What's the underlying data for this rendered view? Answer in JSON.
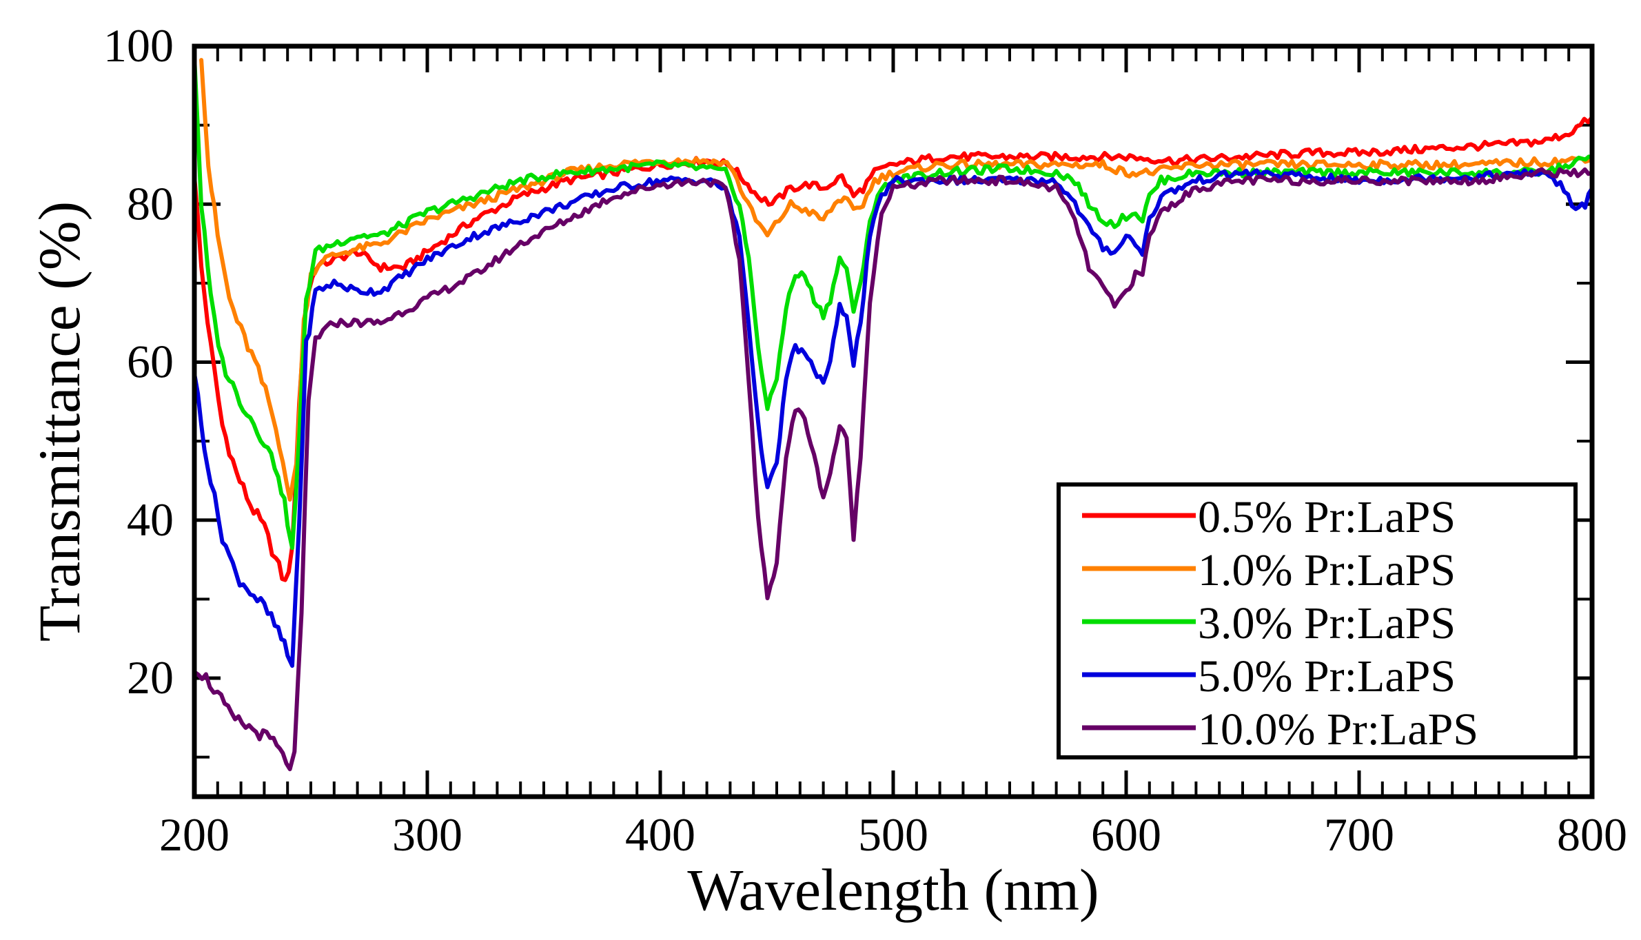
{
  "chart_data": {
    "type": "line",
    "title": "",
    "xlabel": "Wavelength (nm)",
    "ylabel": "Transmittance (%)",
    "xlim": [
      200,
      800
    ],
    "ylim": [
      5,
      100
    ],
    "x_ticks": [
      200,
      300,
      400,
      500,
      600,
      700,
      800
    ],
    "y_ticks": [
      20,
      40,
      60,
      80,
      100
    ],
    "x_tick_labels": [
      "200",
      "300",
      "400",
      "500",
      "600",
      "700",
      "800"
    ],
    "y_tick_labels": [
      "20",
      "40",
      "60",
      "80",
      "100"
    ],
    "grid": false,
    "legend_position": "bottom-right",
    "series": [
      {
        "name": "0.5% Pr:LaPS",
        "color": "#ff0000",
        "points": [
          [
            200,
            84
          ],
          [
            203,
            72
          ],
          [
            207,
            62
          ],
          [
            212,
            52
          ],
          [
            218,
            46
          ],
          [
            224,
            42
          ],
          [
            230,
            39
          ],
          [
            235,
            35
          ],
          [
            239,
            32
          ],
          [
            242,
            36
          ],
          [
            245,
            55
          ],
          [
            248,
            68
          ],
          [
            252,
            72
          ],
          [
            260,
            73
          ],
          [
            270,
            74
          ],
          [
            280,
            72
          ],
          [
            290,
            72
          ],
          [
            300,
            74
          ],
          [
            320,
            78
          ],
          [
            340,
            81
          ],
          [
            360,
            83
          ],
          [
            380,
            84
          ],
          [
            400,
            85
          ],
          [
            420,
            85.5
          ],
          [
            430,
            85
          ],
          [
            436,
            83
          ],
          [
            442,
            81
          ],
          [
            448,
            80
          ],
          [
            456,
            82
          ],
          [
            464,
            82.5
          ],
          [
            470,
            82
          ],
          [
            478,
            83.5
          ],
          [
            483,
            81
          ],
          [
            487,
            82
          ],
          [
            492,
            84
          ],
          [
            500,
            85
          ],
          [
            520,
            86
          ],
          [
            550,
            86
          ],
          [
            580,
            86
          ],
          [
            600,
            86
          ],
          [
            620,
            85.5
          ],
          [
            650,
            86
          ],
          [
            680,
            86.5
          ],
          [
            700,
            86.5
          ],
          [
            730,
            87
          ],
          [
            760,
            87.5
          ],
          [
            780,
            88
          ],
          [
            790,
            89
          ],
          [
            795,
            90
          ],
          [
            800,
            91
          ]
        ]
      },
      {
        "name": "1.0% Pr:LaPS",
        "color": "#ff8000",
        "points": [
          [
            203,
            99
          ],
          [
            206,
            85
          ],
          [
            210,
            76
          ],
          [
            215,
            68
          ],
          [
            220,
            64
          ],
          [
            226,
            60
          ],
          [
            232,
            55
          ],
          [
            238,
            48
          ],
          [
            241,
            42
          ],
          [
            244,
            48
          ],
          [
            247,
            65
          ],
          [
            250,
            71
          ],
          [
            255,
            73
          ],
          [
            265,
            74
          ],
          [
            280,
            75
          ],
          [
            300,
            78
          ],
          [
            320,
            80
          ],
          [
            340,
            82
          ],
          [
            360,
            84
          ],
          [
            380,
            85
          ],
          [
            400,
            85.5
          ],
          [
            420,
            85.5
          ],
          [
            430,
            85
          ],
          [
            436,
            81
          ],
          [
            441,
            78
          ],
          [
            446,
            76
          ],
          [
            451,
            78
          ],
          [
            456,
            80
          ],
          [
            464,
            79
          ],
          [
            470,
            78
          ],
          [
            475,
            80
          ],
          [
            479,
            81
          ],
          [
            483,
            79
          ],
          [
            487,
            80
          ],
          [
            492,
            83
          ],
          [
            500,
            84
          ],
          [
            520,
            85
          ],
          [
            550,
            85
          ],
          [
            580,
            85
          ],
          [
            590,
            85
          ],
          [
            600,
            84
          ],
          [
            610,
            84
          ],
          [
            630,
            85
          ],
          [
            650,
            85
          ],
          [
            700,
            85
          ],
          [
            750,
            85
          ],
          [
            790,
            85.5
          ],
          [
            800,
            86
          ]
        ]
      },
      {
        "name": "3.0% Pr:LaPS",
        "color": "#00dd00",
        "points": [
          [
            200,
            99
          ],
          [
            203,
            80
          ],
          [
            207,
            68
          ],
          [
            212,
            60
          ],
          [
            218,
            56
          ],
          [
            224,
            53
          ],
          [
            230,
            50
          ],
          [
            236,
            46
          ],
          [
            240,
            40
          ],
          [
            242,
            36
          ],
          [
            245,
            50
          ],
          [
            248,
            68
          ],
          [
            252,
            74
          ],
          [
            260,
            75
          ],
          [
            270,
            76
          ],
          [
            280,
            76
          ],
          [
            300,
            79
          ],
          [
            320,
            81
          ],
          [
            340,
            83
          ],
          [
            360,
            84
          ],
          [
            380,
            84.5
          ],
          [
            400,
            85
          ],
          [
            420,
            84.5
          ],
          [
            428,
            84
          ],
          [
            434,
            80
          ],
          [
            438,
            73
          ],
          [
            442,
            62
          ],
          [
            446,
            54
          ],
          [
            450,
            58
          ],
          [
            454,
            67
          ],
          [
            458,
            71
          ],
          [
            462,
            71
          ],
          [
            466,
            68
          ],
          [
            470,
            66
          ],
          [
            473,
            68
          ],
          [
            477,
            73
          ],
          [
            480,
            72
          ],
          [
            483,
            66
          ],
          [
            486,
            70
          ],
          [
            490,
            78
          ],
          [
            495,
            82
          ],
          [
            500,
            83
          ],
          [
            520,
            84
          ],
          [
            550,
            84.5
          ],
          [
            570,
            84
          ],
          [
            578,
            83
          ],
          [
            584,
            80
          ],
          [
            590,
            78
          ],
          [
            595,
            77.5
          ],
          [
            600,
            78.5
          ],
          [
            604,
            79
          ],
          [
            607,
            78
          ],
          [
            610,
            81
          ],
          [
            615,
            83
          ],
          [
            630,
            84
          ],
          [
            650,
            84
          ],
          [
            700,
            84
          ],
          [
            750,
            84
          ],
          [
            780,
            84
          ],
          [
            790,
            85
          ],
          [
            800,
            86
          ]
        ]
      },
      {
        "name": "5.0% Pr:LaPS",
        "color": "#0000dd",
        "points": [
          [
            200,
            59
          ],
          [
            203,
            52
          ],
          [
            207,
            45
          ],
          [
            212,
            38
          ],
          [
            218,
            33
          ],
          [
            224,
            31
          ],
          [
            230,
            29
          ],
          [
            236,
            26
          ],
          [
            240,
            23
          ],
          [
            242,
            21.5
          ],
          [
            245,
            40
          ],
          [
            248,
            62
          ],
          [
            252,
            69
          ],
          [
            260,
            70
          ],
          [
            270,
            69
          ],
          [
            280,
            69
          ],
          [
            300,
            73
          ],
          [
            320,
            76
          ],
          [
            340,
            78
          ],
          [
            360,
            80
          ],
          [
            380,
            82
          ],
          [
            400,
            83
          ],
          [
            420,
            83
          ],
          [
            428,
            82
          ],
          [
            434,
            76
          ],
          [
            438,
            65
          ],
          [
            442,
            52
          ],
          [
            446,
            44
          ],
          [
            450,
            47
          ],
          [
            454,
            58
          ],
          [
            458,
            62
          ],
          [
            462,
            61
          ],
          [
            466,
            59
          ],
          [
            470,
            57.5
          ],
          [
            473,
            60
          ],
          [
            477,
            67
          ],
          [
            480,
            66
          ],
          [
            483,
            60
          ],
          [
            486,
            65
          ],
          [
            490,
            76
          ],
          [
            495,
            81
          ],
          [
            500,
            83
          ],
          [
            520,
            83
          ],
          [
            550,
            83
          ],
          [
            570,
            83
          ],
          [
            578,
            80
          ],
          [
            584,
            77
          ],
          [
            590,
            74.5
          ],
          [
            595,
            74
          ],
          [
            600,
            76
          ],
          [
            604,
            75
          ],
          [
            607,
            74
          ],
          [
            610,
            78
          ],
          [
            615,
            81
          ],
          [
            630,
            83
          ],
          [
            650,
            84
          ],
          [
            700,
            83
          ],
          [
            750,
            83.5
          ],
          [
            780,
            84
          ],
          [
            788,
            82
          ],
          [
            793,
            79
          ],
          [
            797,
            80
          ],
          [
            800,
            82
          ]
        ]
      },
      {
        "name": "10.0% Pr:LaPS",
        "color": "#660066",
        "points": [
          [
            200,
            21.5
          ],
          [
            205,
            20
          ],
          [
            210,
            18
          ],
          [
            216,
            15
          ],
          [
            222,
            14
          ],
          [
            228,
            13
          ],
          [
            234,
            12
          ],
          [
            238,
            10
          ],
          [
            241,
            9
          ],
          [
            243,
            10
          ],
          [
            246,
            28
          ],
          [
            249,
            55
          ],
          [
            252,
            63
          ],
          [
            260,
            65
          ],
          [
            270,
            65
          ],
          [
            280,
            65
          ],
          [
            300,
            68
          ],
          [
            320,
            71
          ],
          [
            340,
            75
          ],
          [
            360,
            78
          ],
          [
            380,
            81
          ],
          [
            400,
            82.5
          ],
          [
            420,
            83
          ],
          [
            428,
            82
          ],
          [
            434,
            73
          ],
          [
            438,
            58
          ],
          [
            442,
            40
          ],
          [
            446,
            30
          ],
          [
            450,
            35
          ],
          [
            454,
            48
          ],
          [
            458,
            54
          ],
          [
            462,
            53
          ],
          [
            466,
            48
          ],
          [
            470,
            43
          ],
          [
            473,
            46
          ],
          [
            477,
            52
          ],
          [
            480,
            50
          ],
          [
            483,
            38
          ],
          [
            486,
            48
          ],
          [
            490,
            68
          ],
          [
            495,
            79
          ],
          [
            500,
            82
          ],
          [
            520,
            83
          ],
          [
            550,
            83
          ],
          [
            570,
            82
          ],
          [
            578,
            78
          ],
          [
            584,
            72
          ],
          [
            590,
            69.5
          ],
          [
            595,
            67
          ],
          [
            600,
            69
          ],
          [
            604,
            71
          ],
          [
            607,
            71
          ],
          [
            610,
            76
          ],
          [
            615,
            79
          ],
          [
            630,
            82
          ],
          [
            650,
            83
          ],
          [
            700,
            83
          ],
          [
            750,
            83
          ],
          [
            780,
            84
          ],
          [
            800,
            84
          ]
        ]
      }
    ]
  }
}
